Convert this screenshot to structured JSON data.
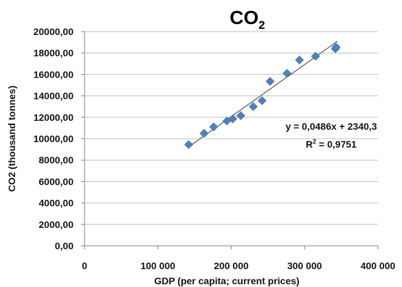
{
  "chart_data": {
    "type": "scatter",
    "title": {
      "main": "CO",
      "subscript": "2"
    },
    "xlabel": "GDP (per capita; current prices)",
    "ylabel": "CO2 (thousand  tonnes)",
    "xlim": [
      0,
      400000
    ],
    "ylim": [
      0,
      20000
    ],
    "x_ticks": [
      0,
      100000,
      200000,
      300000,
      400000
    ],
    "x_tick_labels": [
      "0",
      "100 000",
      "200 000",
      "300 000",
      "400 000"
    ],
    "y_ticks": [
      0,
      2000,
      4000,
      6000,
      8000,
      10000,
      12000,
      14000,
      16000,
      18000,
      20000
    ],
    "y_tick_labels": [
      "0,00",
      "2000,00",
      "4000,00",
      "6000,00",
      "8000,00",
      "10000,00",
      "12000,00",
      "14000,00",
      "16000,00",
      "18000,00",
      "20000,00"
    ],
    "grid": {
      "horizontal": true,
      "vertical": false
    },
    "marker_color": "#4f81bd",
    "marker_shape": "diamond",
    "trendline_color": "#555555",
    "points": [
      {
        "x": 142000,
        "y": 9450
      },
      {
        "x": 163000,
        "y": 10500
      },
      {
        "x": 176000,
        "y": 11100
      },
      {
        "x": 194000,
        "y": 11650
      },
      {
        "x": 202000,
        "y": 11850
      },
      {
        "x": 213000,
        "y": 12150
      },
      {
        "x": 230000,
        "y": 13000
      },
      {
        "x": 242000,
        "y": 13550
      },
      {
        "x": 253000,
        "y": 15350
      },
      {
        "x": 276000,
        "y": 16100
      },
      {
        "x": 293000,
        "y": 17350
      },
      {
        "x": 315000,
        "y": 17700
      },
      {
        "x": 342000,
        "y": 18400
      },
      {
        "x": 343000,
        "y": 18550
      }
    ],
    "trendline": {
      "slope": 0.0486,
      "intercept": 2340.3,
      "x_range": [
        142000,
        345000
      ],
      "equation_label": "y = 0,0486x + 2340,3",
      "r2_label_prefix": "R",
      "r2_label_sup": "2",
      "r2_label_suffix": " = 0,9751"
    }
  }
}
